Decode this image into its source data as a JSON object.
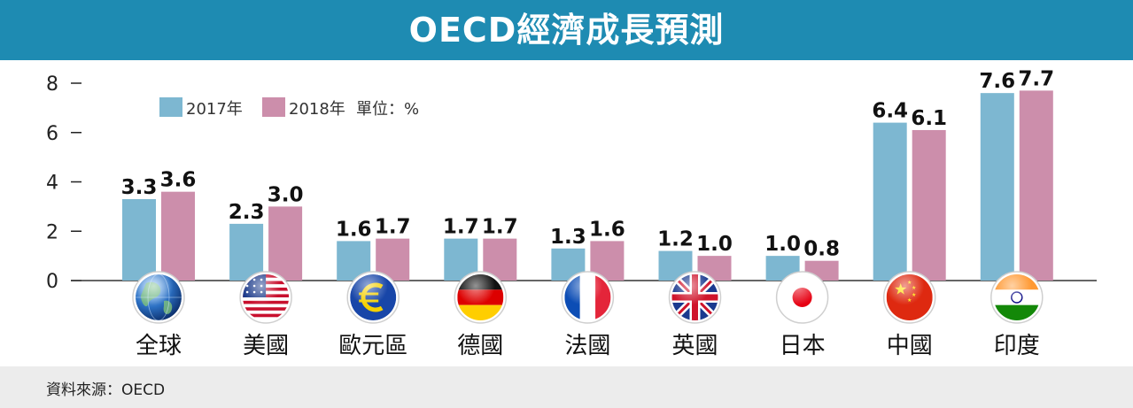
{
  "title": "OECD經濟成長預測",
  "source": "資料來源：OECD",
  "colors": {
    "series_2017": "#7db7d1",
    "series_2018": "#cc8eab",
    "title_bar": "#1e8bb2",
    "footer": "#ececec"
  },
  "chart_data": {
    "type": "bar",
    "title": "OECD經濟成長預測",
    "xlabel": "",
    "ylabel": "",
    "ylim": [
      0,
      8
    ],
    "yticks": [
      "0",
      "2",
      "4",
      "6",
      "8"
    ],
    "unit_label": "單位：%",
    "legend_position": "top-left",
    "grid": false,
    "categories": [
      "全球",
      "美國",
      "歐元區",
      "德國",
      "法國",
      "英國",
      "日本",
      "中國",
      "印度"
    ],
    "series": [
      {
        "name": "2017年",
        "color": "#7db7d1",
        "values": [
          3.3,
          2.3,
          1.6,
          1.7,
          1.3,
          1.2,
          1.0,
          6.4,
          7.6
        ]
      },
      {
        "name": "2018年",
        "color": "#cc8eab",
        "values": [
          3.6,
          3.0,
          1.7,
          1.7,
          1.6,
          1.0,
          0.8,
          6.1,
          7.7
        ]
      }
    ],
    "category_icons": [
      "globe-icon",
      "us-flag-icon",
      "euro-icon",
      "germany-flag-icon",
      "france-flag-icon",
      "uk-flag-icon",
      "japan-flag-icon",
      "china-flag-icon",
      "india-flag-icon"
    ]
  }
}
